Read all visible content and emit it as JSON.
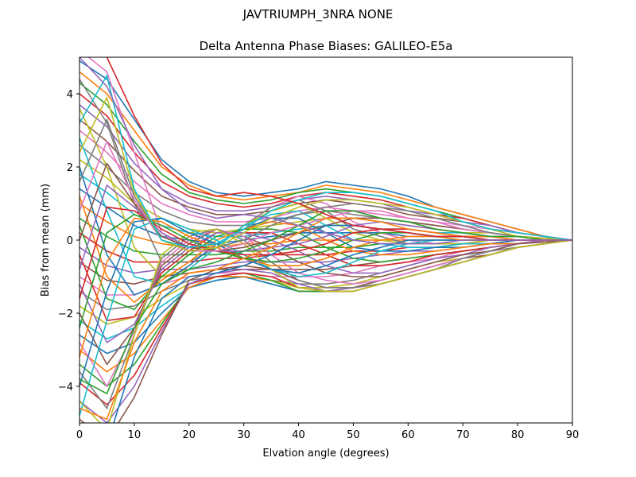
{
  "figure_title": "JAVTRIUMPH_3NRA NONE",
  "chart_data": {
    "type": "line",
    "title": "Delta Antenna Phase Biases: GALILEO-E5a",
    "xlabel": "Elvation angle (degrees)",
    "ylabel": "Bias from mean (mm)",
    "xlim": [
      0,
      90
    ],
    "ylim": [
      -5,
      5
    ],
    "xticks": [
      0,
      10,
      20,
      30,
      40,
      50,
      60,
      70,
      80,
      90
    ],
    "yticks": [
      -4,
      -2,
      0,
      2,
      4
    ],
    "ytick_labels": [
      "−4",
      "−2",
      "0",
      "2",
      "4"
    ],
    "grid": false,
    "legend": "none",
    "x": [
      0,
      5,
      10,
      15,
      20,
      25,
      30,
      35,
      40,
      45,
      50,
      55,
      60,
      65,
      70,
      75,
      80,
      85,
      90
    ],
    "series_colors": [
      "#1f77b4",
      "#ff7f0e",
      "#2ca02c",
      "#d62728",
      "#9467bd",
      "#8c564b",
      "#e377c2",
      "#7f7f7f",
      "#bcbd22",
      "#17becf"
    ],
    "series": [
      {
        "values": [
          4.9,
          4.4,
          3.3,
          2.2,
          1.6,
          1.3,
          1.2,
          1.3,
          1.4,
          1.6,
          1.5,
          1.4,
          1.2,
          0.9,
          0.7,
          0.5,
          0.3,
          0.1,
          0
        ]
      },
      {
        "values": [
          4.6,
          4.0,
          3.0,
          2.0,
          1.5,
          1.2,
          1.1,
          1.2,
          1.3,
          1.5,
          1.4,
          1.3,
          1.1,
          0.9,
          0.7,
          0.5,
          0.3,
          0.1,
          0
        ]
      },
      {
        "values": [
          4.3,
          3.7,
          2.7,
          1.8,
          1.3,
          1.1,
          1.0,
          1.1,
          1.3,
          1.4,
          1.3,
          1.2,
          1.0,
          0.8,
          0.6,
          0.4,
          0.2,
          0.1,
          0
        ]
      },
      {
        "values": [
          4.0,
          3.4,
          2.4,
          1.6,
          1.2,
          1.0,
          0.9,
          1.0,
          1.2,
          1.3,
          1.2,
          1.1,
          0.9,
          0.7,
          0.6,
          0.4,
          0.2,
          0.1,
          0
        ]
      },
      {
        "values": [
          3.7,
          3.1,
          2.1,
          1.4,
          1.0,
          0.8,
          0.8,
          0.9,
          1.1,
          1.2,
          1.1,
          1.0,
          0.8,
          0.7,
          0.5,
          0.4,
          0.2,
          0.1,
          0
        ]
      },
      {
        "values": [
          3.3,
          2.7,
          1.9,
          1.2,
          0.9,
          0.7,
          0.7,
          0.8,
          1.0,
          1.1,
          1.0,
          0.9,
          0.7,
          0.6,
          0.5,
          0.3,
          0.2,
          0.1,
          0
        ]
      },
      {
        "values": [
          3.0,
          2.4,
          1.6,
          1.0,
          0.7,
          0.5,
          0.5,
          0.6,
          0.8,
          0.9,
          0.8,
          0.7,
          0.6,
          0.5,
          0.4,
          0.3,
          0.2,
          0.1,
          0
        ]
      },
      {
        "values": [
          2.6,
          2.0,
          1.3,
          0.8,
          0.5,
          0.4,
          0.4,
          0.5,
          0.7,
          0.8,
          0.7,
          0.6,
          0.5,
          0.4,
          0.3,
          0.2,
          0.1,
          0.05,
          0
        ]
      },
      {
        "values": [
          2.2,
          1.7,
          1.0,
          0.6,
          0.3,
          0.2,
          0.3,
          0.4,
          0.5,
          0.6,
          0.6,
          0.5,
          0.4,
          0.3,
          0.2,
          0.2,
          0.1,
          0.05,
          0
        ]
      },
      {
        "values": [
          1.8,
          1.3,
          0.7,
          0.4,
          0.2,
          0.1,
          0.1,
          0.2,
          0.3,
          0.4,
          0.4,
          0.3,
          0.3,
          0.2,
          0.2,
          0.1,
          0.1,
          0.0,
          0
        ]
      },
      {
        "values": [
          1.4,
          0.9,
          0.4,
          0.1,
          0.0,
          -0.1,
          0.0,
          0.1,
          0.2,
          0.2,
          0.2,
          0.2,
          0.1,
          0.1,
          0.1,
          0.1,
          0.0,
          0.0,
          0
        ]
      },
      {
        "values": [
          1.0,
          0.5,
          0.1,
          -0.1,
          -0.2,
          -0.2,
          -0.1,
          -0.1,
          0.0,
          0.0,
          0.0,
          0.0,
          0.0,
          0.0,
          0.0,
          0.0,
          0.0,
          0.0,
          0
        ]
      },
      {
        "values": [
          0.6,
          0.1,
          -0.3,
          -0.4,
          -0.4,
          -0.4,
          -0.3,
          -0.3,
          -0.2,
          -0.2,
          -0.2,
          -0.1,
          -0.1,
          -0.1,
          -0.1,
          0.0,
          0.0,
          0.0,
          0
        ]
      },
      {
        "values": [
          0.2,
          -0.3,
          -0.6,
          -0.6,
          -0.6,
          -0.5,
          -0.5,
          -0.4,
          -0.4,
          -0.4,
          -0.3,
          -0.3,
          -0.2,
          -0.2,
          -0.1,
          -0.1,
          -0.1,
          0.0,
          0
        ]
      },
      {
        "values": [
          -0.2,
          -0.7,
          -0.9,
          -0.8,
          -0.8,
          -0.7,
          -0.6,
          -0.6,
          -0.6,
          -0.6,
          -0.5,
          -0.4,
          -0.3,
          -0.3,
          -0.2,
          -0.1,
          -0.1,
          0.0,
          0
        ]
      },
      {
        "values": [
          -0.6,
          -1.1,
          -1.2,
          -1.0,
          -0.9,
          -0.8,
          -0.8,
          -0.8,
          -0.8,
          -0.8,
          -0.7,
          -0.6,
          -0.5,
          -0.4,
          -0.3,
          -0.2,
          -0.1,
          0.0,
          0
        ]
      },
      {
        "values": [
          -1.0,
          -1.5,
          -1.5,
          -1.2,
          -1.0,
          -0.9,
          -0.9,
          -1.0,
          -1.0,
          -1.0,
          -0.9,
          -0.7,
          -0.6,
          -0.5,
          -0.3,
          -0.2,
          -0.1,
          -0.05,
          0
        ]
      },
      {
        "values": [
          -1.4,
          -1.9,
          -1.8,
          -1.4,
          -1.1,
          -1.0,
          -1.0,
          -1.1,
          -1.2,
          -1.2,
          -1.1,
          -0.9,
          -0.7,
          -0.5,
          -0.4,
          -0.3,
          -0.1,
          -0.05,
          0
        ]
      },
      {
        "values": [
          -1.8,
          -2.3,
          -2.1,
          -1.6,
          -1.2,
          -1.0,
          -1.0,
          -1.1,
          -1.3,
          -1.3,
          -1.2,
          -1.0,
          -0.8,
          -0.6,
          -0.5,
          -0.3,
          -0.2,
          -0.1,
          0
        ]
      },
      {
        "values": [
          -2.2,
          -2.7,
          -2.4,
          -1.8,
          -1.3,
          -1.1,
          -1.0,
          -1.2,
          -1.4,
          -1.4,
          -1.3,
          -1.1,
          -0.9,
          -0.7,
          -0.5,
          -0.3,
          -0.2,
          -0.1,
          0
        ]
      },
      {
        "values": [
          -2.6,
          -3.1,
          -2.8,
          -2.0,
          -1.3,
          -1.1,
          -1.0,
          -1.2,
          -1.4,
          -1.4,
          -1.3,
          -1.2,
          -1.0,
          -0.8,
          -0.6,
          -0.4,
          -0.2,
          -0.1,
          0
        ]
      },
      {
        "values": [
          -3.0,
          -3.6,
          -3.1,
          -2.2,
          -1.3,
          -1.0,
          -1.0,
          -1.1,
          -1.4,
          -1.4,
          -1.3,
          -1.2,
          -1.0,
          -0.8,
          -0.6,
          -0.4,
          -0.2,
          -0.1,
          0
        ]
      },
      {
        "values": [
          -3.4,
          -4.0,
          -3.4,
          -2.3,
          -1.2,
          -1.0,
          -0.9,
          -1.1,
          -1.4,
          -1.4,
          -1.4,
          -1.2,
          -1.0,
          -0.8,
          -0.6,
          -0.4,
          -0.2,
          -0.1,
          0
        ]
      },
      {
        "values": [
          -3.9,
          -4.5,
          -3.7,
          -2.4,
          -1.2,
          -1.0,
          -0.9,
          -1.0,
          -1.3,
          -1.4,
          -1.4,
          -1.2,
          -1.0,
          -0.8,
          -0.6,
          -0.4,
          -0.2,
          -0.1,
          0
        ]
      },
      {
        "values": [
          -4.4,
          -5.0,
          -4.0,
          -2.5,
          -1.2,
          -0.9,
          -0.8,
          -0.9,
          -1.2,
          -1.4,
          -1.3,
          -1.2,
          -1.0,
          -0.8,
          -0.6,
          -0.4,
          -0.2,
          -0.1,
          0
        ]
      },
      {
        "values": [
          -4.9,
          -5.5,
          -4.3,
          -2.6,
          -1.1,
          -0.8,
          -0.7,
          -0.8,
          -1.1,
          -1.3,
          -1.3,
          -1.1,
          -0.9,
          -0.7,
          -0.5,
          -0.4,
          -0.2,
          -0.1,
          0
        ]
      },
      {
        "values": [
          5.2,
          4.6,
          2.4,
          0.2,
          -0.3,
          -0.2,
          0.4,
          0.9,
          1.2,
          1.0,
          0.5,
          0.2,
          0.0,
          -0.1,
          -0.1,
          -0.1,
          0.0,
          0.0,
          0
        ]
      },
      {
        "values": [
          4.4,
          3.2,
          1.0,
          -0.6,
          -0.6,
          -0.2,
          0.4,
          0.9,
          1.1,
          0.8,
          0.3,
          0.1,
          -0.1,
          -0.1,
          -0.1,
          0.0,
          0.0,
          0.0,
          0
        ]
      },
      {
        "values": [
          3.6,
          2.0,
          -0.2,
          -1.0,
          -0.8,
          -0.2,
          0.4,
          0.8,
          1.0,
          0.6,
          0.2,
          0.0,
          -0.1,
          -0.1,
          -0.1,
          0.0,
          0.0,
          0.0,
          0
        ]
      },
      {
        "values": [
          2.8,
          0.8,
          -1.0,
          -1.2,
          -0.8,
          -0.2,
          0.4,
          0.7,
          0.8,
          0.4,
          0.0,
          -0.1,
          -0.2,
          -0.2,
          -0.1,
          -0.1,
          0.0,
          0.0,
          0
        ]
      },
      {
        "values": [
          2.0,
          -0.4,
          -1.5,
          -1.2,
          -0.7,
          -0.1,
          0.3,
          0.6,
          0.6,
          0.2,
          -0.2,
          -0.3,
          -0.3,
          -0.2,
          -0.2,
          -0.1,
          0.0,
          0.0,
          0
        ]
      },
      {
        "values": [
          1.2,
          -1.0,
          -1.7,
          -1.1,
          -0.6,
          0.0,
          0.3,
          0.5,
          0.4,
          0.0,
          -0.3,
          -0.4,
          -0.4,
          -0.3,
          -0.2,
          -0.1,
          -0.1,
          0.0,
          0
        ]
      },
      {
        "values": [
          0.4,
          -1.6,
          -1.9,
          -1.0,
          -0.4,
          0.1,
          0.3,
          0.3,
          0.2,
          -0.2,
          -0.5,
          -0.6,
          -0.5,
          -0.4,
          -0.3,
          -0.2,
          -0.1,
          0.0,
          0
        ]
      },
      {
        "values": [
          -0.4,
          -2.2,
          -2.1,
          -0.9,
          -0.3,
          0.2,
          0.2,
          0.2,
          -0.1,
          -0.4,
          -0.7,
          -0.7,
          -0.6,
          -0.4,
          -0.3,
          -0.2,
          -0.1,
          0.0,
          0
        ]
      },
      {
        "values": [
          -1.2,
          -2.8,
          -2.3,
          -0.8,
          -0.2,
          0.2,
          0.2,
          0.0,
          -0.3,
          -0.7,
          -0.9,
          -0.9,
          -0.7,
          -0.5,
          -0.4,
          -0.2,
          -0.1,
          0.0,
          0
        ]
      },
      {
        "values": [
          -2.0,
          -3.4,
          -2.4,
          -0.7,
          -0.1,
          0.3,
          0.1,
          -0.2,
          -0.6,
          -0.9,
          -1.0,
          -1.0,
          -0.8,
          -0.6,
          -0.4,
          -0.3,
          -0.1,
          -0.05,
          0
        ]
      },
      {
        "values": [
          -2.8,
          -4.0,
          -2.5,
          -0.6,
          0.0,
          0.3,
          0.1,
          -0.4,
          -0.9,
          -1.1,
          -1.2,
          -1.1,
          -0.9,
          -0.7,
          -0.5,
          -0.3,
          -0.2,
          -0.1,
          0
        ]
      },
      {
        "values": [
          -3.6,
          -4.6,
          -2.6,
          -0.5,
          0.1,
          0.3,
          0.0,
          -0.6,
          -1.1,
          -1.3,
          -1.3,
          -1.2,
          -1.0,
          -0.8,
          -0.5,
          -0.3,
          -0.2,
          -0.1,
          0
        ]
      },
      {
        "values": [
          -4.4,
          -5.2,
          -2.6,
          -0.4,
          0.2,
          0.3,
          -0.1,
          -0.8,
          -1.3,
          -1.4,
          -1.4,
          -1.2,
          -1.0,
          -0.8,
          -0.6,
          -0.4,
          -0.2,
          -0.1,
          0
        ]
      },
      {
        "values": [
          -4.8,
          -2.2,
          0.3,
          0.6,
          0.3,
          0.0,
          -0.4,
          -0.8,
          -1.0,
          -0.9,
          -0.6,
          -0.3,
          -0.1,
          0.0,
          0.0,
          0.0,
          0.0,
          0.0,
          0
        ]
      },
      {
        "values": [
          -4.0,
          -1.4,
          0.5,
          0.6,
          0.2,
          -0.1,
          -0.5,
          -0.8,
          -0.9,
          -0.7,
          -0.4,
          -0.2,
          0.0,
          0.0,
          0.0,
          0.0,
          0.0,
          0.0,
          0
        ]
      },
      {
        "values": [
          -3.2,
          -0.6,
          0.6,
          0.5,
          0.1,
          -0.2,
          -0.5,
          -0.7,
          -0.7,
          -0.5,
          -0.2,
          0.0,
          0.1,
          0.1,
          0.0,
          0.0,
          0.0,
          0.0,
          0
        ]
      },
      {
        "values": [
          -2.4,
          0.2,
          0.7,
          0.4,
          0.0,
          -0.3,
          -0.5,
          -0.6,
          -0.5,
          -0.3,
          0.0,
          0.2,
          0.2,
          0.1,
          0.1,
          0.0,
          0.0,
          0.0,
          0
        ]
      },
      {
        "values": [
          -1.6,
          0.9,
          0.8,
          0.3,
          -0.1,
          -0.3,
          -0.4,
          -0.4,
          -0.3,
          -0.1,
          0.2,
          0.3,
          0.3,
          0.2,
          0.1,
          0.1,
          0.0,
          0.0,
          0
        ]
      },
      {
        "values": [
          -0.8,
          1.5,
          0.9,
          0.2,
          -0.2,
          -0.3,
          -0.3,
          -0.2,
          -0.1,
          0.1,
          0.4,
          0.5,
          0.4,
          0.3,
          0.2,
          0.1,
          0.1,
          0.0,
          0
        ]
      },
      {
        "values": [
          0.0,
          2.1,
          1.0,
          0.1,
          -0.2,
          -0.3,
          -0.2,
          0.0,
          0.2,
          0.4,
          0.6,
          0.6,
          0.5,
          0.4,
          0.3,
          0.2,
          0.1,
          0.0,
          0
        ]
      },
      {
        "values": [
          0.8,
          2.7,
          1.1,
          0.0,
          -0.3,
          -0.3,
          -0.1,
          0.2,
          0.4,
          0.6,
          0.8,
          0.8,
          0.6,
          0.5,
          0.3,
          0.2,
          0.1,
          0.0,
          0
        ]
      },
      {
        "values": [
          1.6,
          3.3,
          1.2,
          0.0,
          -0.3,
          -0.2,
          0.0,
          0.4,
          0.7,
          0.9,
          1.0,
          0.9,
          0.8,
          0.6,
          0.4,
          0.2,
          0.1,
          0.05,
          0
        ]
      },
      {
        "values": [
          2.4,
          3.9,
          1.3,
          0.0,
          -0.3,
          -0.2,
          0.2,
          0.6,
          0.9,
          1.1,
          1.1,
          1.0,
          0.9,
          0.7,
          0.5,
          0.3,
          0.1,
          0.05,
          0
        ]
      },
      {
        "values": [
          3.2,
          4.5,
          1.4,
          0.0,
          -0.2,
          -0.1,
          0.3,
          0.8,
          1.1,
          1.3,
          1.3,
          1.2,
          1.0,
          0.8,
          0.5,
          0.3,
          0.2,
          0.1,
          0
        ]
      },
      {
        "values": [
          -5.2,
          -5.6,
          -3.2,
          -1.6,
          -1.0,
          -0.9,
          -0.7,
          -0.4,
          0.0,
          0.4,
          0.4,
          0.3,
          0.2,
          0.1,
          0.1,
          0.0,
          0.0,
          0.0,
          0
        ]
      },
      {
        "values": [
          -4.6,
          -4.9,
          -2.8,
          -1.4,
          -0.9,
          -0.8,
          -0.5,
          -0.2,
          0.2,
          0.6,
          0.6,
          0.5,
          0.3,
          0.2,
          0.1,
          0.1,
          0.0,
          0.0,
          0
        ]
      },
      {
        "values": [
          -3.8,
          -4.2,
          -2.4,
          -1.2,
          -0.8,
          -0.6,
          -0.3,
          0.0,
          0.4,
          0.8,
          0.8,
          0.6,
          0.5,
          0.3,
          0.2,
          0.1,
          0.1,
          0.0,
          0
        ]
      },
      {
        "values": [
          5.4,
          5.0,
          3.4,
          2.1,
          1.4,
          1.2,
          1.3,
          1.2,
          1.0,
          0.7,
          0.4,
          0.3,
          0.2,
          0.1,
          0.1,
          0.0,
          0.0,
          0.0,
          0
        ]
      },
      {
        "values": [
          5.0,
          4.2,
          2.6,
          1.4,
          0.8,
          0.6,
          0.7,
          0.6,
          0.4,
          0.2,
          0.0,
          -0.1,
          -0.1,
          -0.1,
          0.0,
          0.0,
          0.0,
          0.0,
          0
        ]
      }
    ]
  }
}
